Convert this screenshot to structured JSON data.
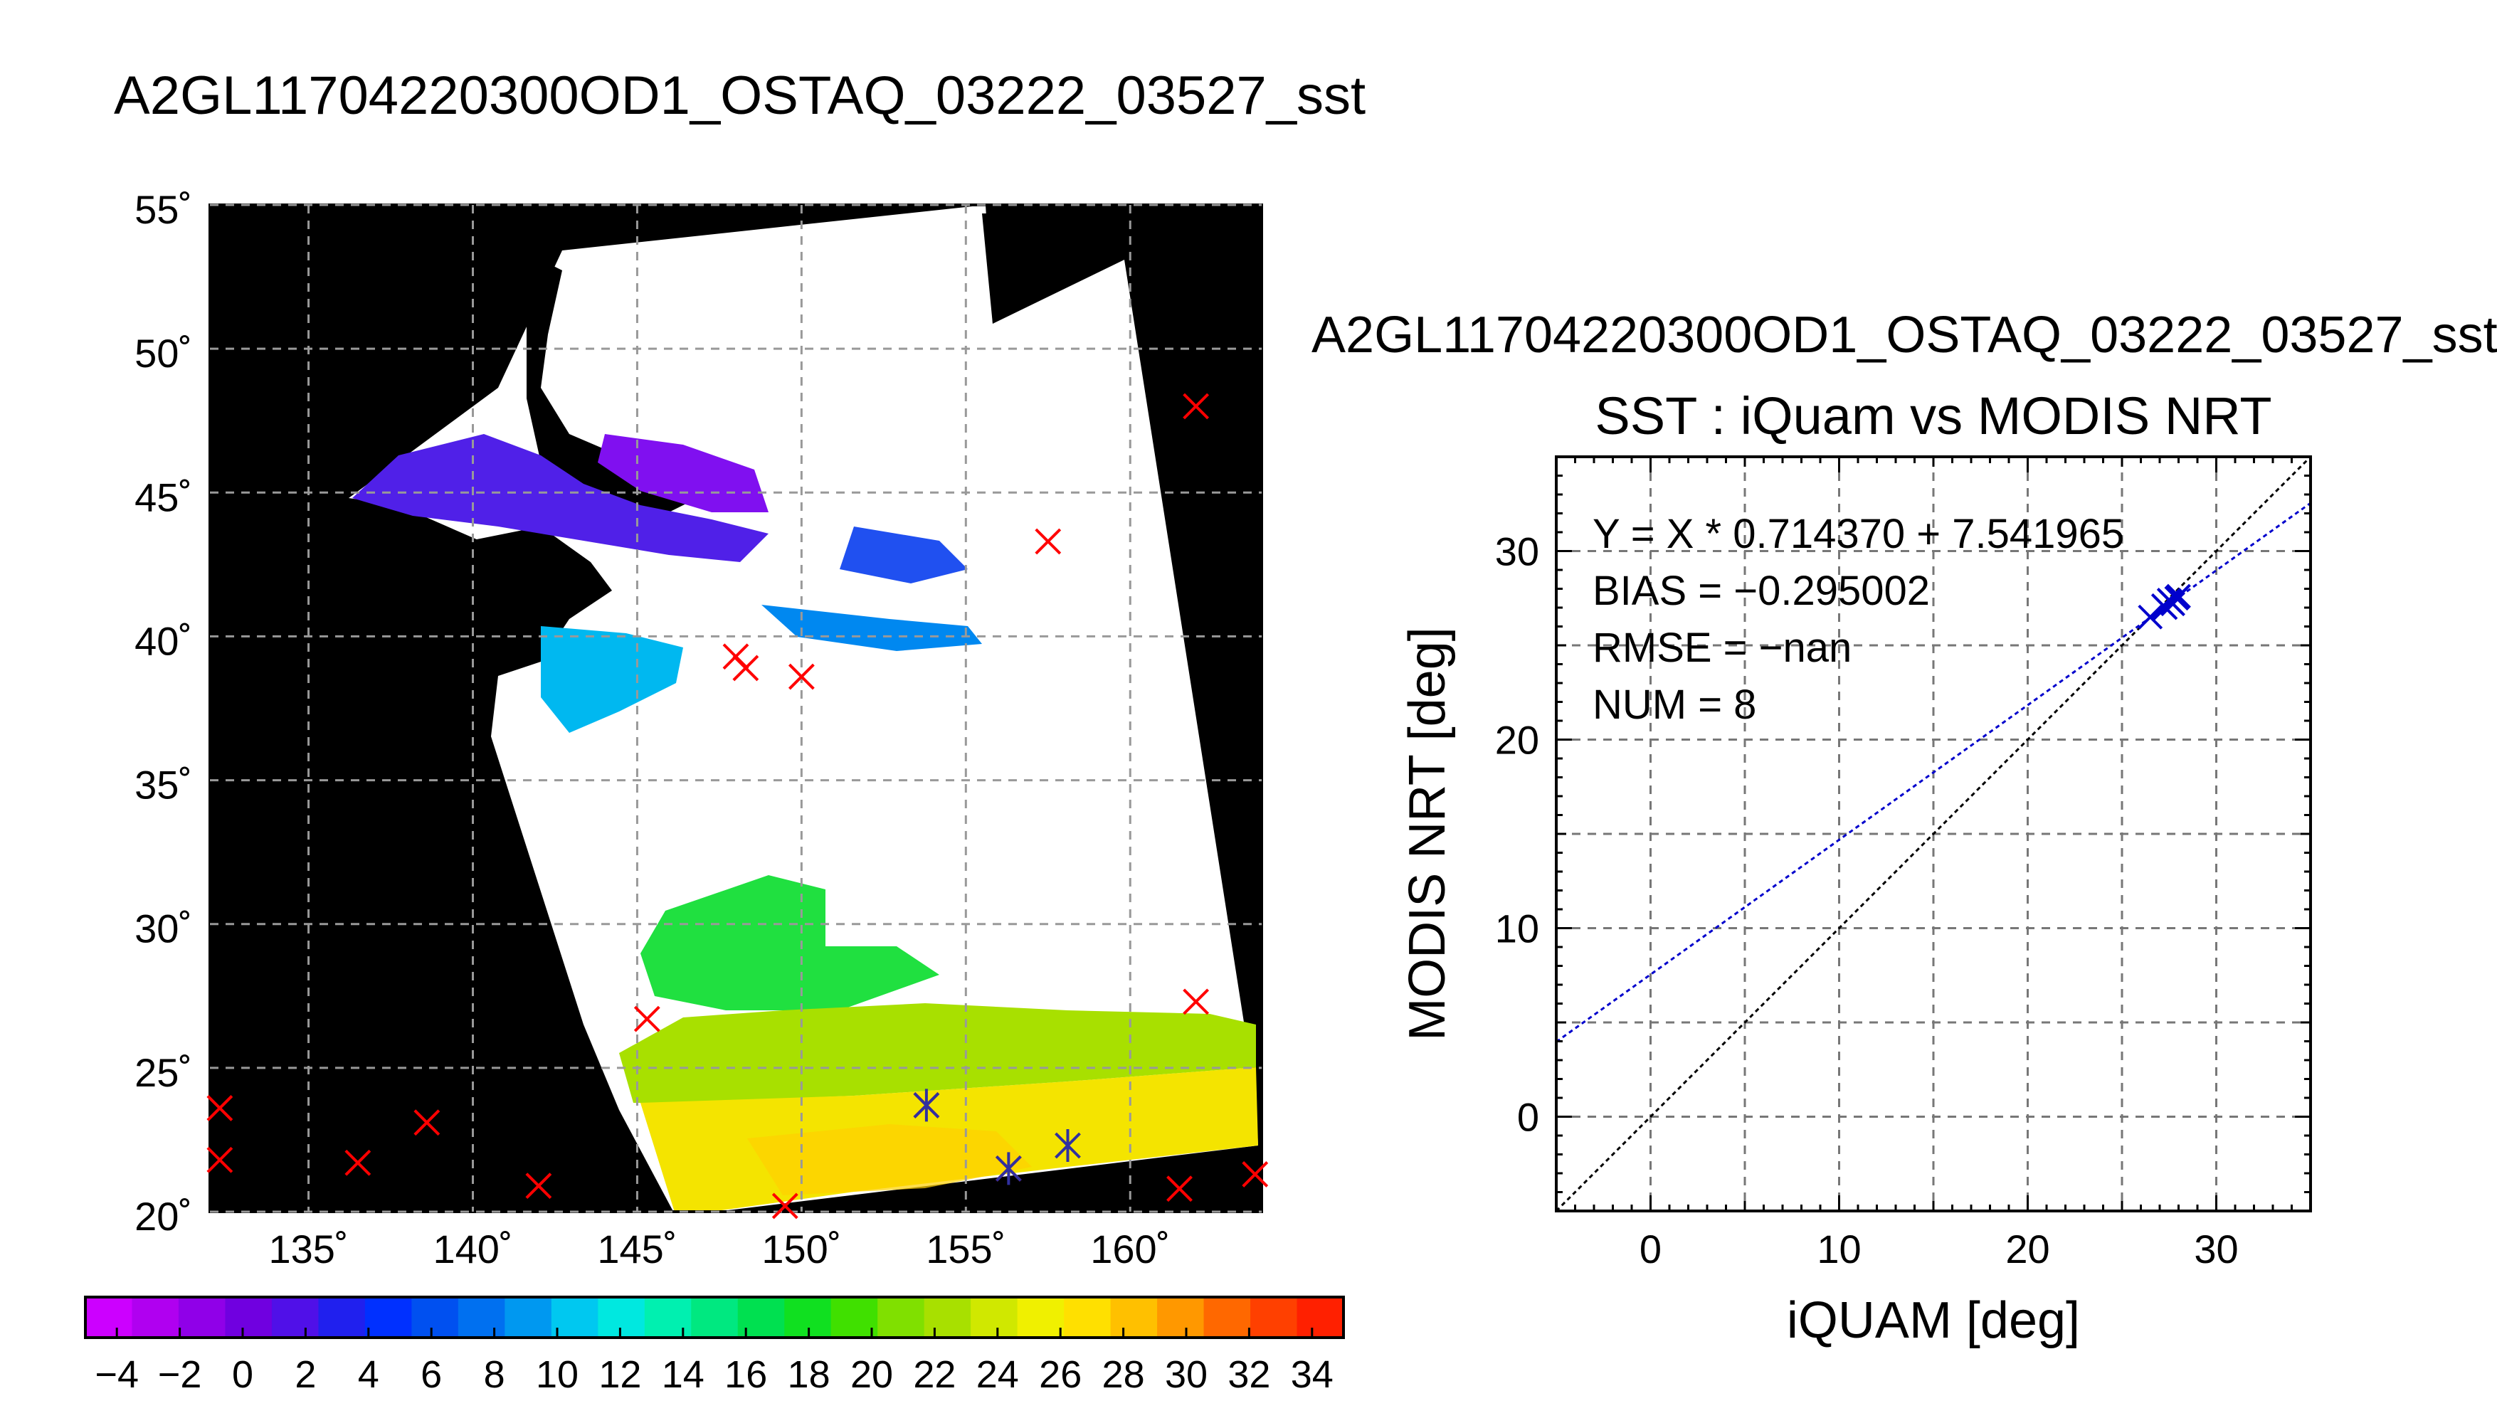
{
  "map_panel": {
    "title": "A2GL11704220300OD1_OSTAQ_03222_03527_sst",
    "lat_labels": [
      "55˚",
      "50˚",
      "45˚",
      "40˚",
      "35˚",
      "30˚",
      "25˚",
      "20˚"
    ],
    "lon_labels": [
      "135˚",
      "140˚",
      "145˚",
      "150˚",
      "155˚",
      "160˚"
    ],
    "lat_range": [
      20,
      55
    ],
    "lon_range": [
      132,
      164
    ],
    "colorbar": {
      "range": [
        -5,
        35
      ],
      "tick_labels": [
        "−4",
        "−2",
        "0",
        "2",
        "4",
        "6",
        "8",
        "10",
        "12",
        "14",
        "16",
        "18",
        "20",
        "22",
        "24",
        "26",
        "28",
        "30",
        "32",
        "34"
      ],
      "colors": [
        "#cc00ff",
        "#b000f0",
        "#9000e8",
        "#7000e0",
        "#5010e8",
        "#2020ee",
        "#0030ff",
        "#0050f0",
        "#0070f0",
        "#0098f0",
        "#00c8f0",
        "#00e8e0",
        "#00f0b0",
        "#00e880",
        "#00e050",
        "#10e020",
        "#40e000",
        "#80e000",
        "#a8e000",
        "#d0e800",
        "#f0f000",
        "#ffe000",
        "#ffc000",
        "#ff9800",
        "#ff6800",
        "#ff4000",
        "#ff2000"
      ]
    },
    "match_points": [
      {
        "lon": 162.0,
        "lat": 48.0,
        "color": "#ff0000"
      },
      {
        "lon": 157.5,
        "lat": 43.3,
        "color": "#ff0000"
      },
      {
        "lon": 148.0,
        "lat": 39.3,
        "color": "#ff0000"
      },
      {
        "lon": 148.3,
        "lat": 38.9,
        "color": "#ff0000"
      },
      {
        "lon": 150.0,
        "lat": 38.6,
        "color": "#ff0000"
      },
      {
        "lon": 145.3,
        "lat": 26.7,
        "color": "#ff0000"
      },
      {
        "lon": 162.0,
        "lat": 27.3,
        "color": "#ff0000"
      },
      {
        "lon": 132.3,
        "lat": 23.6,
        "color": "#ff0000"
      },
      {
        "lon": 132.3,
        "lat": 21.8,
        "color": "#ff0000"
      },
      {
        "lon": 136.5,
        "lat": 21.7,
        "color": "#ff0000"
      },
      {
        "lon": 138.6,
        "lat": 23.1,
        "color": "#ff0000"
      },
      {
        "lon": 142.0,
        "lat": 20.9,
        "color": "#ff0000"
      },
      {
        "lon": 149.5,
        "lat": 20.2,
        "color": "#ff0000"
      },
      {
        "lon": 153.8,
        "lat": 23.7,
        "color": "#ff0000"
      },
      {
        "lon": 156.3,
        "lat": 21.5,
        "color": "#ff0000"
      },
      {
        "lon": 161.5,
        "lat": 20.8,
        "color": "#ff0000"
      },
      {
        "lon": 163.8,
        "lat": 21.3,
        "color": "#ff0000"
      }
    ],
    "matchup_points": [
      {
        "lon": 153.8,
        "lat": 23.7,
        "color": "#3030a0"
      },
      {
        "lon": 156.3,
        "lat": 21.5,
        "color": "#3030a0"
      },
      {
        "lon": 158.1,
        "lat": 22.3,
        "color": "#3030a0"
      }
    ]
  },
  "scatter_panel": {
    "title": "A2GL11704220300OD1_OSTAQ_03222_03527_sst",
    "subtitle": "SST : iQuam vs MODIS NRT",
    "xlabel": "iQUAM [deg]",
    "ylabel": "MODIS NRT [deg]",
    "stats": [
      "Y = X * 0.714370 + 7.541965",
      "BIAS = −0.295002",
      "RMSE = −nan",
      "NUM = 8"
    ]
  },
  "chart_data": {
    "type": "scatter",
    "title": "SST : iQuam vs MODIS NRT",
    "xlabel": "iQUAM [deg]",
    "ylabel": "MODIS NRT [deg]",
    "xlim": [
      -5,
      35
    ],
    "ylim": [
      -5,
      35
    ],
    "x_ticks": [
      "0",
      "10",
      "20",
      "30"
    ],
    "y_ticks": [
      "0",
      "10",
      "20",
      "30"
    ],
    "grid": true,
    "series": [
      {
        "type": "scatter",
        "color": "#0000cc",
        "points": [
          [
            26.5,
            26.5
          ],
          [
            27.3,
            27.0
          ],
          [
            27.6,
            27.3
          ],
          [
            27.9,
            27.5
          ],
          [
            27.5,
            27.4
          ],
          [
            28.0,
            27.6
          ],
          [
            27.2,
            27.1
          ],
          [
            27.7,
            27.2
          ]
        ]
      },
      {
        "type": "line",
        "color": "#0000cc",
        "slope": 0.71437,
        "intercept": 7.541965
      },
      {
        "type": "line",
        "color": "#000000",
        "slope": 1,
        "intercept": 0
      }
    ]
  }
}
